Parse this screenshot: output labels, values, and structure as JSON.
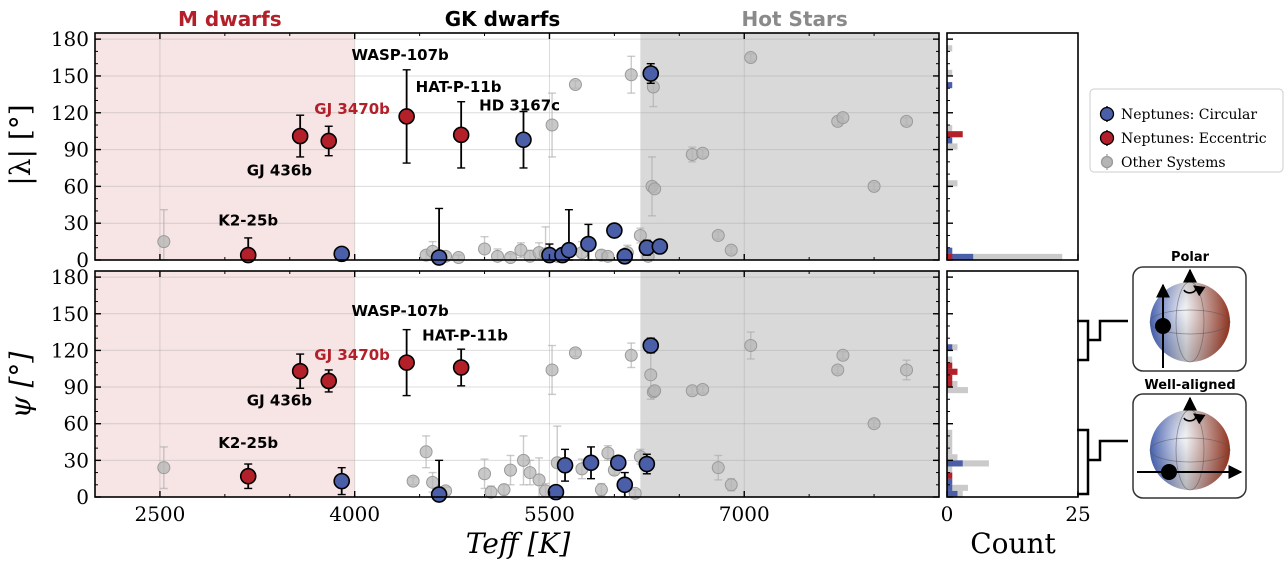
{
  "chart_data": [
    {
      "type": "scatter",
      "panel": "top",
      "ylabel": "|λ| [°]",
      "xlabel": "",
      "xlim": [
        2000,
        8500
      ],
      "ylim": [
        0,
        185
      ],
      "xticks": [
        "2500",
        "4000",
        "5500",
        "7000"
      ],
      "yticks": [
        "0",
        "30",
        "60",
        "90",
        "120",
        "150",
        "180"
      ],
      "grid": true,
      "regions": [
        {
          "label": "M dwarfs",
          "x": [
            2000,
            4000
          ],
          "color": "#f7e4e4",
          "label_color": "#b3202a"
        },
        {
          "label": "GK dwarfs",
          "x": [
            4000,
            6200
          ],
          "color": "#ffffff",
          "label_color": "#000000"
        },
        {
          "label": "Hot Stars",
          "x": [
            6200,
            8500
          ],
          "color": "#d9d9d9",
          "label_color": "#8a8a8a"
        }
      ],
      "series": [
        {
          "name": "Neptunes: Circular",
          "color": "#4b5ea8",
          "points": [
            {
              "x": 3900,
              "y": 5,
              "err": 5
            },
            {
              "x": 4650,
              "y": 2,
              "err": 40
            },
            {
              "x": 5300,
              "y": 98,
              "err": 23
            },
            {
              "x": 5500,
              "y": 4,
              "err": 9
            },
            {
              "x": 5600,
              "y": 4,
              "err": 4
            },
            {
              "x": 5650,
              "y": 8,
              "err": 33
            },
            {
              "x": 5800,
              "y": 13,
              "err": 16
            },
            {
              "x": 6000,
              "y": 24,
              "err": 3
            },
            {
              "x": 6080,
              "y": 3,
              "err": 3
            },
            {
              "x": 6250,
              "y": 10,
              "err": 6
            },
            {
              "x": 6280,
              "y": 152,
              "err": 8
            },
            {
              "x": 6350,
              "y": 11,
              "err": 3
            }
          ]
        },
        {
          "name": "Neptunes: Eccentric",
          "color": "#b3202a",
          "points": [
            {
              "x": 3180,
              "y": 4,
              "err": 14
            },
            {
              "x": 3580,
              "y": 101,
              "err": 17
            },
            {
              "x": 3800,
              "y": 97,
              "err": 12
            },
            {
              "x": 4400,
              "y": 117,
              "err": 38
            },
            {
              "x": 4820,
              "y": 102,
              "err": 27
            }
          ]
        },
        {
          "name": "Other Systems",
          "color": "#b5b5b5",
          "points": [
            {
              "x": 2530,
              "y": 15,
              "err": 26
            },
            {
              "x": 4550,
              "y": 4,
              "err": 3
            },
            {
              "x": 4600,
              "y": 7,
              "err": 8
            },
            {
              "x": 4700,
              "y": 3,
              "err": 3
            },
            {
              "x": 4800,
              "y": 2,
              "err": 2
            },
            {
              "x": 5000,
              "y": 9,
              "err": 10
            },
            {
              "x": 5100,
              "y": 3,
              "err": 6
            },
            {
              "x": 5200,
              "y": 2,
              "err": 3
            },
            {
              "x": 5280,
              "y": 8,
              "err": 6
            },
            {
              "x": 5350,
              "y": 3,
              "err": 5
            },
            {
              "x": 5420,
              "y": 6,
              "err": 8
            },
            {
              "x": 5470,
              "y": 5,
              "err": 22
            },
            {
              "x": 5520,
              "y": 110,
              "err": 26
            },
            {
              "x": 5560,
              "y": 3,
              "err": 5
            },
            {
              "x": 5700,
              "y": 143,
              "err": 3
            },
            {
              "x": 5750,
              "y": 6,
              "err": 9
            },
            {
              "x": 5900,
              "y": 4,
              "err": 4
            },
            {
              "x": 5950,
              "y": 3,
              "err": 3
            },
            {
              "x": 6100,
              "y": 6,
              "err": 6
            },
            {
              "x": 6130,
              "y": 151,
              "err": 15
            },
            {
              "x": 6200,
              "y": 20,
              "err": 6
            },
            {
              "x": 6260,
              "y": 3,
              "err": 3
            },
            {
              "x": 6290,
              "y": 60,
              "err": 24
            },
            {
              "x": 6300,
              "y": 141,
              "err": 16
            },
            {
              "x": 6310,
              "y": 58,
              "err": 3
            },
            {
              "x": 6600,
              "y": 86,
              "err": 6
            },
            {
              "x": 6680,
              "y": 87,
              "err": 3
            },
            {
              "x": 6800,
              "y": 20,
              "err": 3
            },
            {
              "x": 6900,
              "y": 8,
              "err": 3
            },
            {
              "x": 7050,
              "y": 165,
              "err": 3
            },
            {
              "x": 7720,
              "y": 113,
              "err": 3
            },
            {
              "x": 7760,
              "y": 116,
              "err": 3
            },
            {
              "x": 8000,
              "y": 60,
              "err": 3
            },
            {
              "x": 8250,
              "y": 113,
              "err": 3
            }
          ]
        }
      ],
      "annotations": [
        {
          "text": "WASP-107b",
          "x": 4350,
          "y": 163,
          "color": "#000000"
        },
        {
          "text": "HAT-P-11b",
          "x": 4800,
          "y": 137,
          "color": "#000000"
        },
        {
          "text": "HD 3167c",
          "x": 5270,
          "y": 122,
          "color": "#000000"
        },
        {
          "text": "GJ 3470b",
          "x": 3980,
          "y": 119,
          "color": "#b3202a"
        },
        {
          "text": "GJ 436b",
          "x": 3420,
          "y": 69,
          "color": "#000000"
        },
        {
          "text": "K2-25b",
          "x": 3180,
          "y": 28,
          "color": "#000000"
        }
      ],
      "histogram": {
        "xlabel": "Count",
        "xlim": [
          0,
          25
        ],
        "xticks": [
          "0",
          "25"
        ],
        "bin_width": 5,
        "series": [
          {
            "name": "Other Systems",
            "color": "#c4c4c4",
            "counts": [
              22,
              1,
              0,
              0,
              0,
              0,
              0,
              0,
              0,
              0,
              0,
              0,
              2,
              0,
              0,
              0,
              0,
              0,
              2,
              0,
              0,
              1,
              0,
              0,
              0,
              0,
              0,
              0,
              0,
              0,
              1,
              0,
              0,
              0,
              1,
              0
            ]
          },
          {
            "name": "Neptunes: Circular",
            "color": "#4b5ea8",
            "counts": [
              5,
              1,
              0,
              0,
              0,
              0,
              0,
              0,
              0,
              0,
              0,
              0,
              0,
              0,
              0,
              0,
              0,
              0,
              0,
              1,
              0,
              0,
              0,
              0,
              0,
              0,
              0,
              0,
              1,
              0,
              0,
              0,
              0,
              0,
              0,
              0
            ]
          },
          {
            "name": "Neptunes: Eccentric",
            "color": "#b3202a",
            "counts": [
              1,
              0,
              0,
              0,
              0,
              0,
              0,
              0,
              0,
              0,
              0,
              0,
              0,
              0,
              0,
              0,
              0,
              0,
              0,
              0,
              3,
              0,
              0,
              0,
              0,
              0,
              0,
              0,
              0,
              0,
              0,
              0,
              0,
              0,
              0,
              0
            ]
          }
        ]
      }
    },
    {
      "type": "scatter",
      "panel": "bottom",
      "ylabel": "ψ [°]",
      "xlabel": "Teff [K]",
      "xlim": [
        2000,
        8500
      ],
      "ylim": [
        0,
        185
      ],
      "xticks": [
        "2500",
        "4000",
        "5500",
        "7000"
      ],
      "yticks": [
        "0",
        "30",
        "60",
        "90",
        "120",
        "150",
        "180"
      ],
      "grid": true,
      "series": [
        {
          "name": "Neptunes: Circular",
          "color": "#4b5ea8",
          "points": [
            {
              "x": 3900,
              "y": 13,
              "err": 11
            },
            {
              "x": 4650,
              "y": 2,
              "err": 28
            },
            {
              "x": 5550,
              "y": 4,
              "err": 5
            },
            {
              "x": 5620,
              "y": 26,
              "err": 13
            },
            {
              "x": 5820,
              "y": 28,
              "err": 13
            },
            {
              "x": 6030,
              "y": 28,
              "err": 5
            },
            {
              "x": 6080,
              "y": 10,
              "err": 10
            },
            {
              "x": 6250,
              "y": 27,
              "err": 8
            },
            {
              "x": 6280,
              "y": 124,
              "err": 6
            }
          ]
        },
        {
          "name": "Neptunes: Eccentric",
          "color": "#b3202a",
          "points": [
            {
              "x": 3180,
              "y": 17,
              "err": 10
            },
            {
              "x": 3580,
              "y": 103,
              "err": 14
            },
            {
              "x": 3800,
              "y": 95,
              "err": 9
            },
            {
              "x": 4400,
              "y": 110,
              "err": 27
            },
            {
              "x": 4820,
              "y": 106,
              "err": 15
            }
          ]
        },
        {
          "name": "Other Systems",
          "color": "#b5b5b5",
          "points": [
            {
              "x": 2530,
              "y": 24,
              "err": 17
            },
            {
              "x": 4450,
              "y": 13,
              "err": 3
            },
            {
              "x": 4550,
              "y": 37,
              "err": 13
            },
            {
              "x": 4600,
              "y": 12,
              "err": 8
            },
            {
              "x": 4700,
              "y": 5,
              "err": 3
            },
            {
              "x": 5000,
              "y": 19,
              "err": 12
            },
            {
              "x": 5050,
              "y": 4,
              "err": 5
            },
            {
              "x": 5150,
              "y": 6,
              "err": 4
            },
            {
              "x": 5200,
              "y": 22,
              "err": 12
            },
            {
              "x": 5300,
              "y": 30,
              "err": 20
            },
            {
              "x": 5350,
              "y": 20,
              "err": 10
            },
            {
              "x": 5420,
              "y": 14,
              "err": 18
            },
            {
              "x": 5470,
              "y": 5,
              "err": 6
            },
            {
              "x": 5520,
              "y": 104,
              "err": 20
            },
            {
              "x": 5560,
              "y": 28,
              "err": 30
            },
            {
              "x": 5700,
              "y": 118,
              "err": 3
            },
            {
              "x": 5750,
              "y": 23,
              "err": 8
            },
            {
              "x": 5900,
              "y": 6,
              "err": 5
            },
            {
              "x": 5950,
              "y": 36,
              "err": 6
            },
            {
              "x": 6000,
              "y": 22,
              "err": 4
            },
            {
              "x": 6130,
              "y": 116,
              "err": 10
            },
            {
              "x": 6160,
              "y": 3,
              "err": 3
            },
            {
              "x": 6200,
              "y": 33,
              "err": 6
            },
            {
              "x": 6280,
              "y": 100,
              "err": 20
            },
            {
              "x": 6300,
              "y": 86,
              "err": 3
            },
            {
              "x": 6310,
              "y": 87,
              "err": 3
            },
            {
              "x": 6600,
              "y": 87,
              "err": 3
            },
            {
              "x": 6680,
              "y": 88,
              "err": 3
            },
            {
              "x": 6800,
              "y": 24,
              "err": 10
            },
            {
              "x": 6900,
              "y": 10,
              "err": 5
            },
            {
              "x": 7050,
              "y": 124,
              "err": 11
            },
            {
              "x": 7720,
              "y": 104,
              "err": 3
            },
            {
              "x": 7760,
              "y": 116,
              "err": 3
            },
            {
              "x": 8000,
              "y": 60,
              "err": 3
            },
            {
              "x": 8250,
              "y": 104,
              "err": 8
            }
          ]
        }
      ],
      "annotations": [
        {
          "text": "WASP-107b",
          "x": 4350,
          "y": 148,
          "color": "#000000"
        },
        {
          "text": "HAT-P-11b",
          "x": 4850,
          "y": 128,
          "color": "#000000"
        },
        {
          "text": "GJ 3470b",
          "x": 3980,
          "y": 112,
          "color": "#b3202a"
        },
        {
          "text": "GJ 436b",
          "x": 3420,
          "y": 75,
          "color": "#000000"
        },
        {
          "text": "K2-25b",
          "x": 3180,
          "y": 40,
          "color": "#000000"
        }
      ],
      "histogram": {
        "xlabel": "Count",
        "xlim": [
          0,
          25
        ],
        "xticks": [
          "0",
          "25"
        ],
        "bin_width": 5,
        "series": [
          {
            "name": "Other Systems",
            "color": "#c4c4c4",
            "counts": [
              3,
              4,
              1,
              1,
              1,
              8,
              2,
              1,
              1,
              1,
              1,
              0,
              0,
              0,
              0,
              0,
              0,
              4,
              2,
              1,
              2,
              1,
              1,
              0,
              2,
              0,
              0,
              0,
              0,
              0,
              0,
              0,
              0,
              0,
              0,
              0
            ]
          },
          {
            "name": "Neptunes: Circular",
            "color": "#4b5ea8",
            "counts": [
              2,
              1,
              1,
              0,
              0,
              3,
              0,
              0,
              0,
              0,
              0,
              0,
              0,
              0,
              0,
              0,
              0,
              0,
              0,
              0,
              0,
              0,
              0,
              0,
              1,
              0,
              0,
              0,
              0,
              0,
              0,
              0,
              0,
              0,
              0,
              0
            ]
          },
          {
            "name": "Neptunes: Eccentric",
            "color": "#b3202a",
            "counts": [
              0,
              0,
              0,
              1,
              0,
              0,
              0,
              0,
              0,
              0,
              0,
              0,
              0,
              0,
              0,
              0,
              0,
              0,
              1,
              1,
              2,
              1,
              0,
              0,
              0,
              0,
              0,
              0,
              0,
              0,
              0,
              0,
              0,
              0,
              0,
              0
            ]
          }
        ]
      }
    }
  ],
  "legend": {
    "placement": "right",
    "items": [
      {
        "label": "Neptunes: Circular",
        "color": "#4b5ea8"
      },
      {
        "label": "Neptunes: Eccentric",
        "color": "#b3202a"
      },
      {
        "label": "Other Systems",
        "color": "#b5b5b5"
      }
    ]
  },
  "insets": [
    {
      "label": "Polar",
      "range": [
        90,
        150
      ]
    },
    {
      "label": "Well-aligned",
      "range": [
        0,
        60
      ]
    }
  ]
}
